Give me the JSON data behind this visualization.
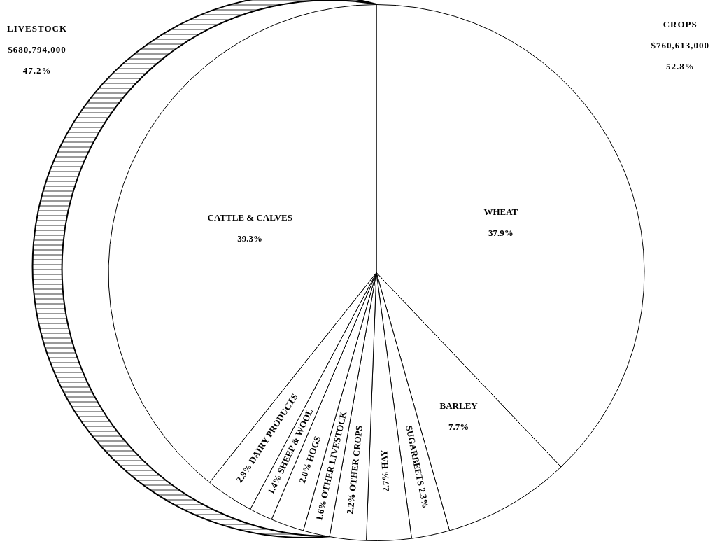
{
  "chart_data": {
    "type": "pie",
    "categories": [
      "WHEAT",
      "BARLEY",
      "SUGARBEETS",
      "HAY",
      "OTHER CROPS",
      "OTHER LIVESTOCK",
      "HOGS",
      "SHEEP & WOOL",
      "DAIRY PRODUCTS",
      "CATTLE & CALVES"
    ],
    "values": [
      37.9,
      7.7,
      2.3,
      2.7,
      2.2,
      1.6,
      2.0,
      1.4,
      2.9,
      39.3
    ],
    "value_labels": [
      "37.9%",
      "7.7%",
      "2.3%",
      "2.7%",
      "2.2%",
      "1.6%",
      "2.0%",
      "1.4%",
      "2.9%",
      "39.3%"
    ],
    "colors": [
      "#ffffff",
      "#ffffff",
      "#ffffff",
      "#ffffff",
      "#ffffff",
      "#ffffff",
      "#ffffff",
      "#ffffff",
      "#ffffff",
      "#ffffff"
    ],
    "annotations": [
      "LIVESTOCK\n$680,794,000\n47.2%",
      "CROPS\n$760,613,000\n52.8%"
    ],
    "legend": false
  }
}
